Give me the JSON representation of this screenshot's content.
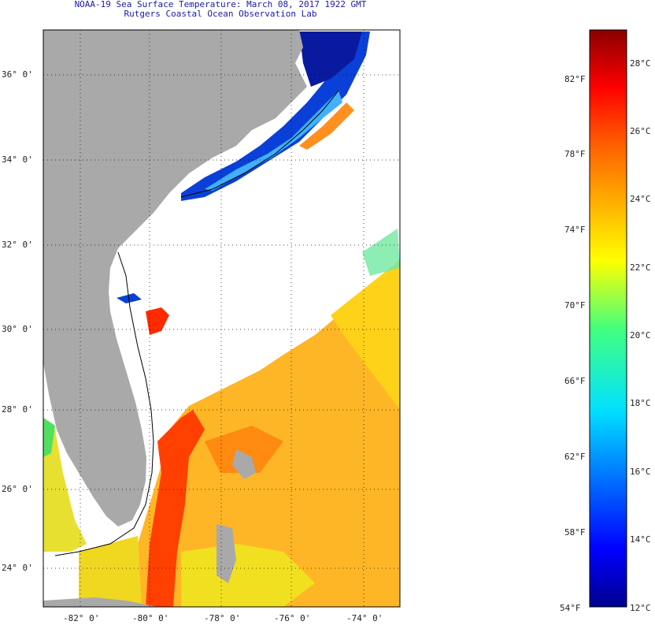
{
  "title": {
    "line1": "NOAA-19 Sea Surface Temperature:  March 08, 2017 1922 GMT",
    "line2": "Rutgers Coastal Ocean Observation Lab"
  },
  "map": {
    "lat_ticks": [
      "36° 0'",
      "34° 0'",
      "32° 0'",
      "30° 0'",
      "28° 0'",
      "26° 0'",
      "24° 0'"
    ],
    "lon_ticks": [
      "-82° 0'",
      "-80° 0'",
      "-78° 0'",
      "-76° 0'",
      "-74° 0'"
    ],
    "colors": {
      "land": "#a9a9a9",
      "cloud": "#ffffff",
      "frame": "#000000"
    }
  },
  "colorbar": {
    "fahrenheit_labels": [
      "82°F",
      "78°F",
      "74°F",
      "70°F",
      "66°F",
      "62°F",
      "58°F",
      "54°F"
    ],
    "celsius_labels": [
      "28°C",
      "26°C",
      "24°C",
      "22°C",
      "20°C",
      "18°C",
      "16°C",
      "14°C",
      "12°C"
    ],
    "gradient": [
      "#00008f",
      "#0000ff",
      "#0070ff",
      "#00e0ff",
      "#40ff80",
      "#ffff00",
      "#ffb000",
      "#ff6000",
      "#ff0000",
      "#8b0000"
    ]
  }
}
